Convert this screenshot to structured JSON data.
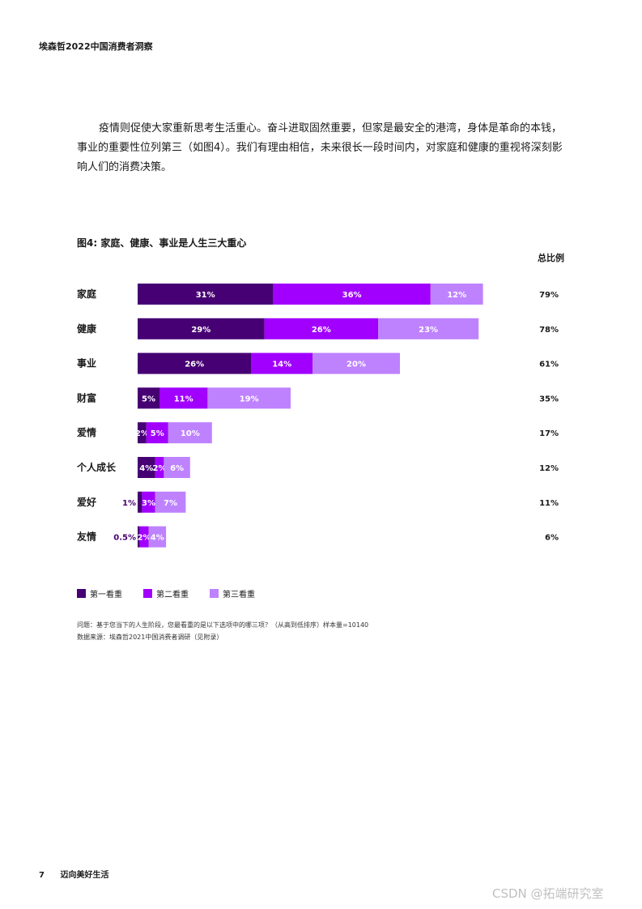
{
  "header": {
    "title": "埃森哲2022中国消费者洞察"
  },
  "intro": {
    "text": "疫情则促使大家重新思考生活重心。奋斗进取固然重要，但家是最安全的港湾，身体是革命的本钱，事业的重要性位列第三（如图4）。我们有理由相信，未来很长一段时间内，对家庭和健康的重视将深刻影响人们的消费决策。"
  },
  "figure": {
    "title": "图4: 家庭、健康、事业是人生三大重心",
    "total_header": "总比例"
  },
  "colors": {
    "first": "#460073",
    "second": "#a100ff",
    "third": "#be82ff"
  },
  "chart_data": {
    "type": "bar",
    "orientation": "horizontal",
    "stacked": true,
    "categories": [
      "家庭",
      "健康",
      "事业",
      "财富",
      "爱情",
      "个人成长",
      "爱好",
      "友情"
    ],
    "series": [
      {
        "name": "第一看重",
        "values": [
          31,
          29,
          26,
          5,
          2,
          4,
          1,
          0.5
        ],
        "labels": [
          "31%",
          "29%",
          "26%",
          "5%",
          "2%",
          "4%",
          "1%",
          "0.5%"
        ]
      },
      {
        "name": "第二看重",
        "values": [
          36,
          26,
          14,
          11,
          5,
          2,
          3,
          2
        ],
        "labels": [
          "36%",
          "26%",
          "14%",
          "11%",
          "5%",
          "2%",
          "3%",
          "2%"
        ]
      },
      {
        "name": "第三看重",
        "values": [
          12,
          23,
          20,
          19,
          10,
          6,
          7,
          4
        ],
        "labels": [
          "12%",
          "23%",
          "20%",
          "19%",
          "10%",
          "6%",
          "7%",
          "4%"
        ]
      }
    ],
    "totals": [
      "79%",
      "78%",
      "61%",
      "35%",
      "17%",
      "12%",
      "11%",
      "6%"
    ],
    "grid": false,
    "legend_position": "bottom-left"
  },
  "legend": [
    {
      "label": "第一看重",
      "color": "#460073"
    },
    {
      "label": "第二看重",
      "color": "#a100ff"
    },
    {
      "label": "第三看重",
      "color": "#be82ff"
    }
  ],
  "notes": {
    "question": "问题：基于您当下的人生阶段，您最看重的是以下选项中的哪三项？（从高到低排序）样本量=10140",
    "source": "数据来源：埃森哲2021中国消费者调研（见附录）"
  },
  "footer": {
    "page": "7",
    "section": "迈向美好生活"
  },
  "watermark": "CSDN @拓端研究室"
}
